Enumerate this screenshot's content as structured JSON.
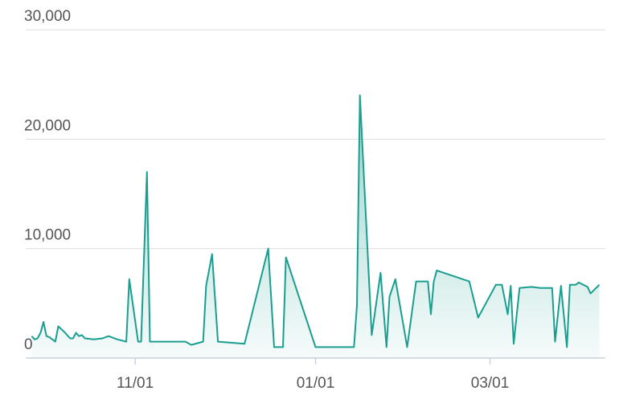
{
  "chart_data": {
    "type": "area",
    "x": [
      "09/27",
      "09/28",
      "09/29",
      "09/30",
      "10/01",
      "10/02",
      "10/03",
      "10/05",
      "10/06",
      "10/08",
      "10/10",
      "10/11",
      "10/12",
      "10/13",
      "10/14",
      "10/15",
      "10/18",
      "10/21",
      "10/23",
      "10/26",
      "10/29",
      "10/30",
      "11/02",
      "11/03",
      "11/05",
      "11/06",
      "11/18",
      "11/20",
      "11/24",
      "11/25",
      "11/27",
      "11/29",
      "12/08",
      "12/16",
      "12/18",
      "12/21",
      "12/22",
      "01/01",
      "01/14",
      "01/15",
      "01/16",
      "01/20",
      "01/23",
      "01/25",
      "01/26",
      "01/28",
      "02/01",
      "02/04",
      "02/08",
      "02/09",
      "02/10",
      "02/11",
      "02/22",
      "02/25",
      "03/03",
      "03/05",
      "03/07",
      "03/08",
      "03/09",
      "03/11",
      "03/15",
      "03/18",
      "03/22",
      "03/23",
      "03/25",
      "03/27",
      "03/28",
      "03/30",
      "03/31",
      "04/03",
      "04/04",
      "04/07"
    ],
    "values": [
      2000,
      1700,
      1800,
      2300,
      3300,
      2000,
      1900,
      1500,
      2900,
      2400,
      1800,
      1800,
      2300,
      2000,
      2100,
      1800,
      1700,
      1800,
      2000,
      1700,
      1500,
      7200,
      1500,
      1500,
      17000,
      1500,
      1500,
      1200,
      1500,
      6600,
      9500,
      1500,
      1300,
      10000,
      1000,
      1000,
      9200,
      1000,
      1000,
      4800,
      24000,
      2100,
      7800,
      1000,
      5600,
      7200,
      1000,
      7000,
      7000,
      4000,
      7000,
      8000,
      7000,
      3700,
      6700,
      6700,
      4000,
      6600,
      1300,
      6400,
      6500,
      6400,
      6400,
      1500,
      6600,
      1000,
      6700,
      6700,
      6900,
      6500,
      5900,
      6700
    ],
    "color": "#1a9e8f",
    "xlim": [
      "09/25",
      "04/09"
    ],
    "xticks": [
      "11/01",
      "01/01",
      "03/01"
    ],
    "ylim": [
      0,
      30000
    ],
    "yticks": [
      0,
      {
        "value": 10000,
        "label": "10,000"
      },
      {
        "value": 20000,
        "label": "20,000"
      },
      {
        "value": 30000,
        "label": "30,000"
      }
    ],
    "grid": true
  }
}
